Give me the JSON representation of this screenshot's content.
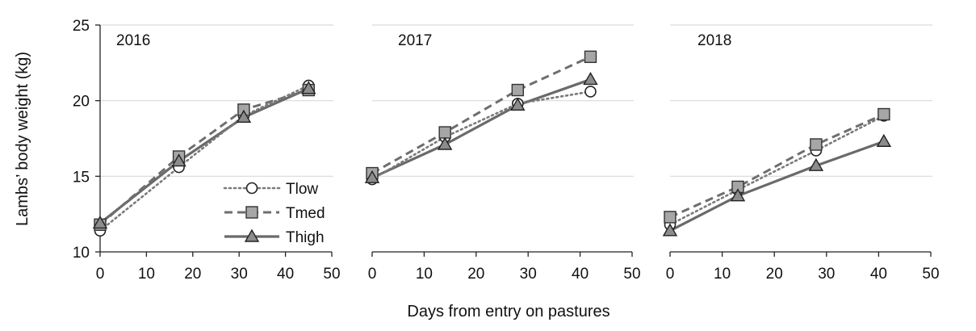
{
  "figure": {
    "ylabel": "Lambs’ body weight (kg)",
    "xlabel": "Days from entry on pastures"
  },
  "legend": {
    "placement": "inside-first-panel-lower-right",
    "entries": [
      {
        "name": "Tlow",
        "style": "dotted",
        "marker": "circle-open"
      },
      {
        "name": "Tmed",
        "style": "dashed",
        "marker": "square"
      },
      {
        "name": "Thigh",
        "style": "solid",
        "marker": "triangle"
      }
    ]
  },
  "colors": {
    "Tlow_line": "#7a7a7a",
    "Tmed_line": "#6e6e6e",
    "Thigh_line": "#6a6a6a",
    "marker_fill_gray": "#a6a6a6",
    "marker_fill_triangle": "#8c8c8c",
    "marker_fill_circle": "#ffffff",
    "gridline": "#d9d9d9",
    "axis": "#222222"
  },
  "chart_data": [
    {
      "type": "line",
      "title": "2016",
      "xlim": [
        0,
        50
      ],
      "ylim": [
        10,
        25
      ],
      "xticks": [
        0,
        10,
        20,
        30,
        40,
        50
      ],
      "yticks": [
        10,
        15,
        20,
        25
      ],
      "grid": "horizontal",
      "series": [
        {
          "name": "Tlow",
          "x": [
            0,
            17,
            31,
            45
          ],
          "y": [
            11.4,
            15.6,
            19.0,
            21.0
          ]
        },
        {
          "name": "Tmed",
          "x": [
            0,
            17,
            31,
            45
          ],
          "y": [
            11.8,
            16.3,
            19.4,
            20.7
          ]
        },
        {
          "name": "Thigh",
          "x": [
            0,
            17,
            31,
            45
          ],
          "y": [
            11.9,
            16.0,
            18.9,
            20.8
          ]
        }
      ]
    },
    {
      "type": "line",
      "title": "2017",
      "xlim": [
        0,
        50
      ],
      "ylim": [
        10,
        25
      ],
      "xticks": [
        0,
        10,
        20,
        30,
        40,
        50
      ],
      "yticks": [
        10,
        15,
        20,
        25
      ],
      "grid": "horizontal",
      "series": [
        {
          "name": "Tlow",
          "x": [
            0,
            14,
            28,
            42
          ],
          "y": [
            14.8,
            17.6,
            19.8,
            20.6
          ]
        },
        {
          "name": "Tmed",
          "x": [
            0,
            14,
            28,
            42
          ],
          "y": [
            15.2,
            17.9,
            20.7,
            22.9
          ]
        },
        {
          "name": "Thigh",
          "x": [
            0,
            14,
            28,
            42
          ],
          "y": [
            14.9,
            17.1,
            19.7,
            21.4
          ]
        }
      ]
    },
    {
      "type": "line",
      "title": "2018",
      "xlim": [
        0,
        50
      ],
      "ylim": [
        10,
        25
      ],
      "xticks": [
        0,
        10,
        20,
        30,
        40,
        50
      ],
      "yticks": [
        10,
        15,
        20,
        25
      ],
      "grid": "horizontal",
      "series": [
        {
          "name": "Tlow",
          "x": [
            0,
            13,
            28,
            41
          ],
          "y": [
            11.8,
            14.1,
            16.7,
            19.0
          ]
        },
        {
          "name": "Tmed",
          "x": [
            0,
            13,
            28,
            41
          ],
          "y": [
            12.3,
            14.3,
            17.1,
            19.1
          ]
        },
        {
          "name": "Thigh",
          "x": [
            0,
            13,
            28,
            41
          ],
          "y": [
            11.4,
            13.7,
            15.7,
            17.3
          ]
        }
      ]
    }
  ]
}
